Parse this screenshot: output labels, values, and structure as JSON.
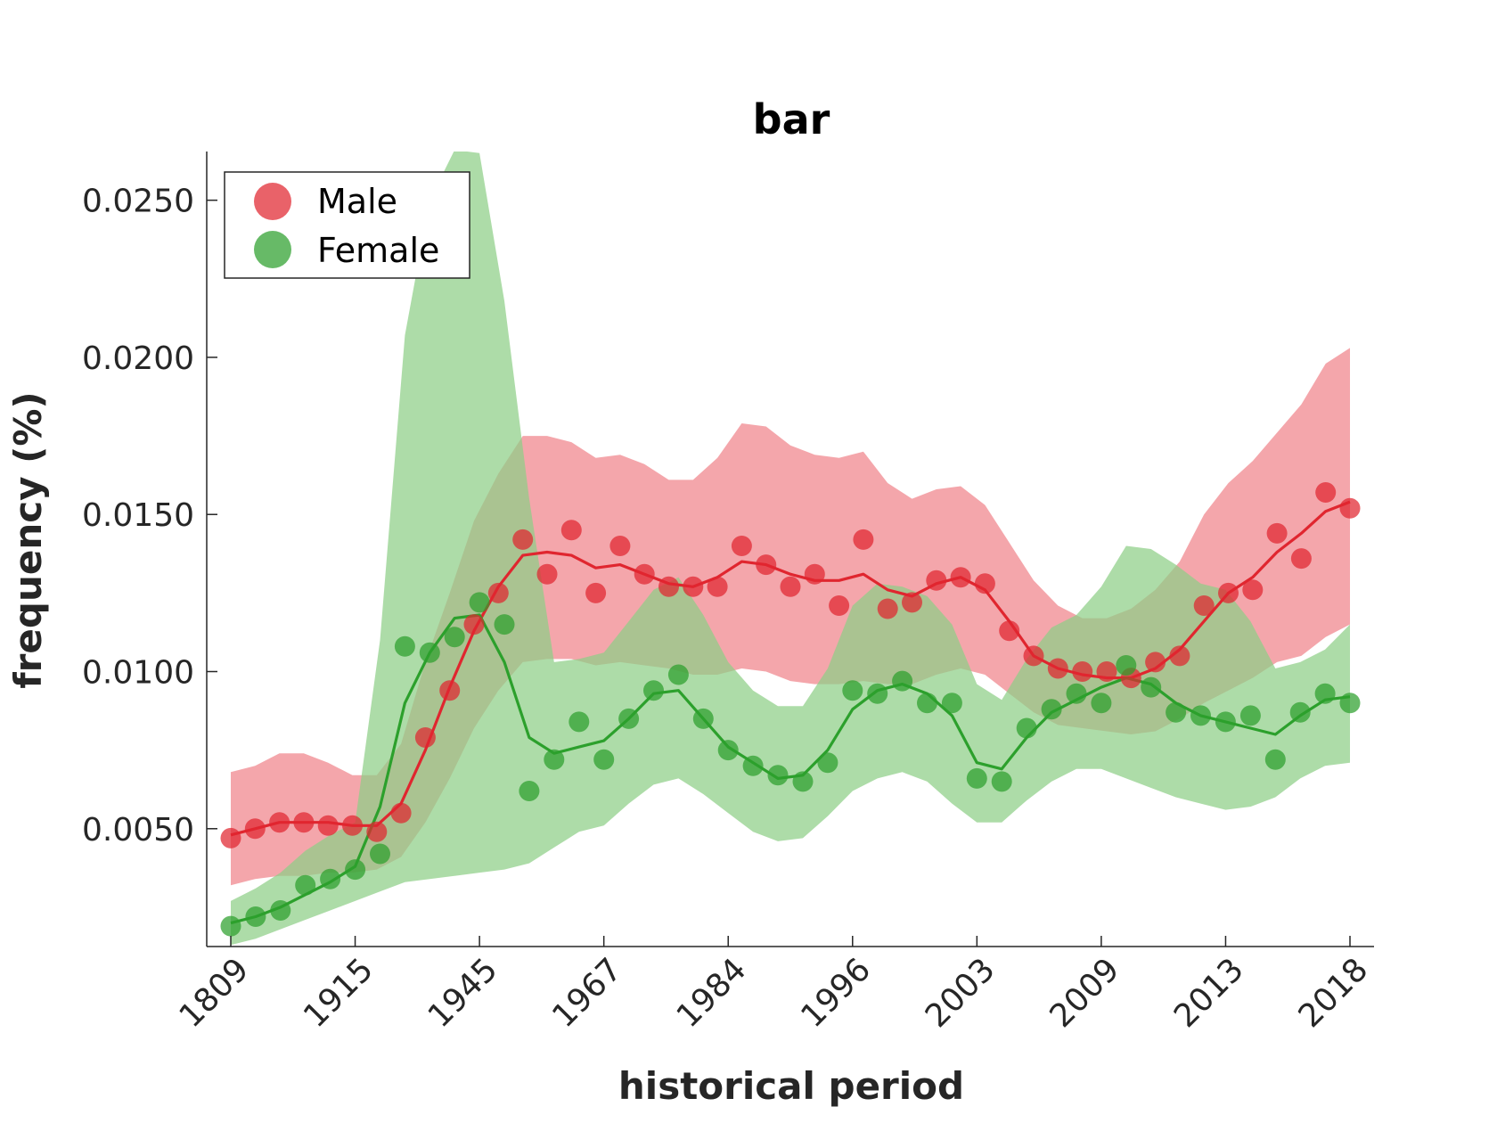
{
  "chart_data": {
    "type": "line",
    "title": "bar",
    "xlabel": "historical period",
    "ylabel": "frequency (%)",
    "x_tick_labels": [
      "1809",
      "1915",
      "1945",
      "1967",
      "1984",
      "1996",
      "2003",
      "2009",
      "2013",
      "2018"
    ],
    "y_ticks": [
      0.005,
      0.01,
      0.015,
      0.02,
      0.025
    ],
    "y_tick_labels": [
      "0.0050",
      "0.0100",
      "0.0150",
      "0.0200",
      "0.0250"
    ],
    "ylim": [
      0.00125,
      0.02655
    ],
    "grid": false,
    "legend_position": "top-left",
    "colors": {
      "male": "#e0262f",
      "female": "#2ca02c",
      "male_band": "#f0848a",
      "female_band": "#8ecf86"
    },
    "series": [
      {
        "name": "Male",
        "points": [
          0.0047,
          0.005,
          0.0052,
          0.0052,
          0.0051,
          0.0051,
          0.0049,
          0.0055,
          0.0079,
          0.0094,
          0.0115,
          0.0125,
          0.0142,
          0.0131,
          0.0145,
          0.0125,
          0.014,
          0.0131,
          0.0127,
          0.0127,
          0.0127,
          0.014,
          0.0134,
          0.0127,
          0.0131,
          0.0121,
          0.0142,
          0.012,
          0.0122,
          0.0129,
          0.013,
          0.0128,
          0.0113,
          0.0105,
          0.0101,
          0.01,
          0.01,
          0.0098,
          0.0103,
          0.0105,
          0.0121,
          0.0125,
          0.0126,
          0.0144,
          0.0136,
          0.0157,
          0.0152
        ],
        "smooth": [
          0.0048,
          0.005,
          0.0052,
          0.0052,
          0.0052,
          0.0051,
          0.0051,
          0.0058,
          0.0075,
          0.0095,
          0.0113,
          0.0127,
          0.0137,
          0.0138,
          0.0137,
          0.0133,
          0.0134,
          0.0131,
          0.0128,
          0.0127,
          0.013,
          0.0135,
          0.0134,
          0.0131,
          0.0129,
          0.0129,
          0.0131,
          0.0126,
          0.0124,
          0.0128,
          0.013,
          0.0126,
          0.0116,
          0.0105,
          0.0101,
          0.0099,
          0.0098,
          0.0098,
          0.0101,
          0.0107,
          0.0116,
          0.0125,
          0.013,
          0.0138,
          0.0144,
          0.0151,
          0.0154
        ],
        "band_upper": [
          0.0068,
          0.007,
          0.0074,
          0.0074,
          0.0071,
          0.0067,
          0.0067,
          0.0077,
          0.0103,
          0.0125,
          0.0148,
          0.0163,
          0.0175,
          0.0175,
          0.0173,
          0.0168,
          0.0169,
          0.0166,
          0.0161,
          0.0161,
          0.0168,
          0.0179,
          0.0178,
          0.0172,
          0.0169,
          0.0168,
          0.017,
          0.016,
          0.0155,
          0.0158,
          0.0159,
          0.0153,
          0.0141,
          0.0129,
          0.0121,
          0.0117,
          0.0117,
          0.012,
          0.0126,
          0.0135,
          0.015,
          0.016,
          0.0167,
          0.0176,
          0.0185,
          0.0198,
          0.0203
        ],
        "band_lower": [
          0.0032,
          0.0034,
          0.0035,
          0.0035,
          0.0036,
          0.0036,
          0.0037,
          0.0041,
          0.0052,
          0.0066,
          0.0082,
          0.0094,
          0.0103,
          0.0104,
          0.0104,
          0.0102,
          0.0103,
          0.0102,
          0.0101,
          0.0099,
          0.0099,
          0.0101,
          0.01,
          0.0097,
          0.0096,
          0.0096,
          0.0097,
          0.0096,
          0.0096,
          0.0099,
          0.0101,
          0.0099,
          0.0093,
          0.0087,
          0.0083,
          0.0082,
          0.0081,
          0.008,
          0.0081,
          0.0085,
          0.009,
          0.0094,
          0.0098,
          0.0103,
          0.0105,
          0.0111,
          0.0115
        ]
      },
      {
        "name": "Female",
        "points": [
          0.0019,
          0.0022,
          0.0024,
          0.0032,
          0.0034,
          0.0037,
          0.0042,
          0.0108,
          0.0106,
          0.0111,
          0.0122,
          0.0115,
          0.0062,
          0.0072,
          0.0084,
          0.0072,
          0.0085,
          0.0094,
          0.0099,
          0.0085,
          0.0075,
          0.007,
          0.0067,
          0.0065,
          0.0071,
          0.0094,
          0.0093,
          0.0097,
          0.009,
          0.009,
          0.0066,
          0.0065,
          0.0082,
          0.0088,
          0.0093,
          0.009,
          0.0102,
          0.0095,
          0.0087,
          0.0086,
          0.0084,
          0.0086,
          0.0072,
          0.0087,
          0.0093,
          0.009
        ],
        "smooth": [
          0.002,
          0.0022,
          0.0025,
          0.0029,
          0.0033,
          0.0038,
          0.0057,
          0.009,
          0.0106,
          0.0117,
          0.0118,
          0.0103,
          0.0079,
          0.0074,
          0.0076,
          0.0078,
          0.0085,
          0.0093,
          0.0094,
          0.0085,
          0.0076,
          0.0071,
          0.0066,
          0.0067,
          0.0075,
          0.0088,
          0.0094,
          0.0096,
          0.0093,
          0.0086,
          0.0071,
          0.0069,
          0.0079,
          0.0087,
          0.0091,
          0.0095,
          0.0098,
          0.0096,
          0.009,
          0.0086,
          0.0084,
          0.0082,
          0.008,
          0.0086,
          0.0091,
          0.0092
        ],
        "band_upper": [
          0.0027,
          0.0031,
          0.0036,
          0.0043,
          0.0048,
          0.0052,
          0.011,
          0.0207,
          0.025,
          0.0266,
          0.0265,
          0.0218,
          0.0155,
          0.0103,
          0.0104,
          0.0106,
          0.0116,
          0.0126,
          0.013,
          0.0118,
          0.0103,
          0.0094,
          0.0089,
          0.0089,
          0.0101,
          0.0121,
          0.0128,
          0.0127,
          0.0124,
          0.0115,
          0.0096,
          0.0091,
          0.0104,
          0.0114,
          0.0118,
          0.0127,
          0.014,
          0.0139,
          0.0134,
          0.0128,
          0.0126,
          0.0116,
          0.0101,
          0.0103,
          0.0107,
          0.0115
        ],
        "band_lower": [
          0.0013,
          0.0015,
          0.0018,
          0.0021,
          0.0024,
          0.0027,
          0.003,
          0.0033,
          0.0034,
          0.0035,
          0.0036,
          0.0037,
          0.0039,
          0.0044,
          0.0049,
          0.0051,
          0.0058,
          0.0064,
          0.0066,
          0.0061,
          0.0055,
          0.0049,
          0.0046,
          0.0047,
          0.0054,
          0.0062,
          0.0066,
          0.0068,
          0.0065,
          0.0058,
          0.0052,
          0.0052,
          0.0059,
          0.0065,
          0.0069,
          0.0069,
          0.0066,
          0.0063,
          0.006,
          0.0058,
          0.0056,
          0.0057,
          0.006,
          0.0066,
          0.007,
          0.0071
        ]
      }
    ]
  }
}
